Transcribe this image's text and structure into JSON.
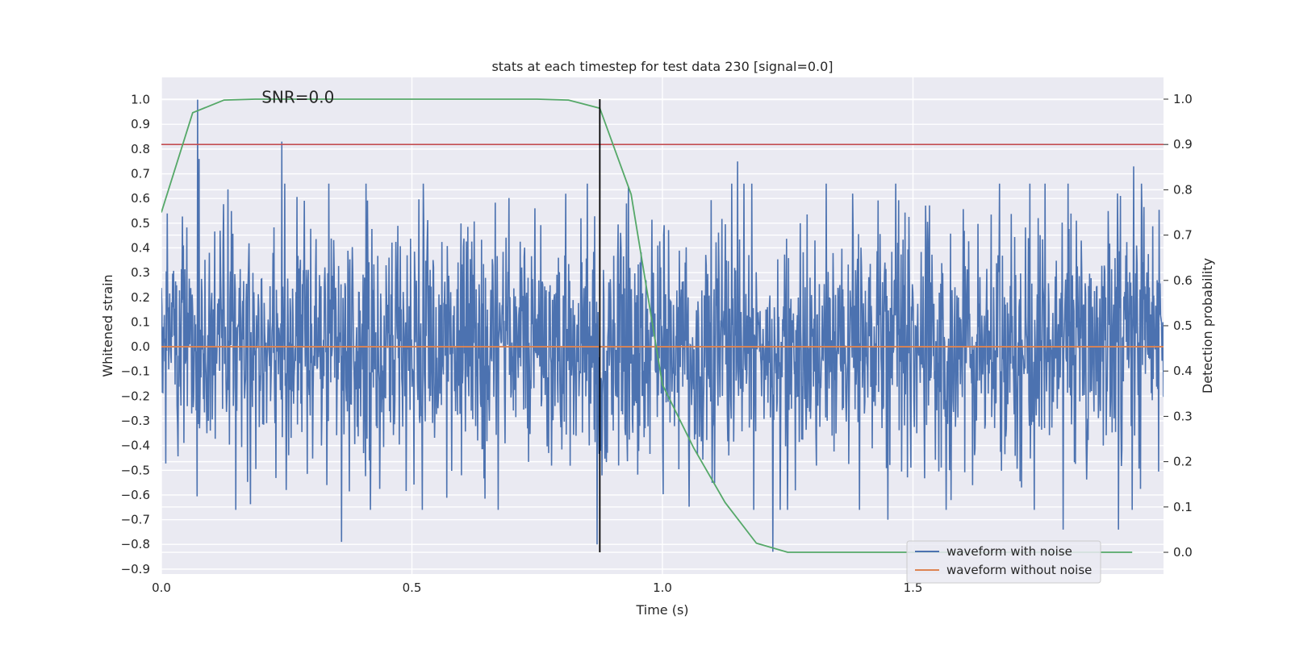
{
  "chart_data": {
    "type": "line",
    "title": "stats at each timestep for test data 230 [signal=0.0]",
    "xlabel": "Time (s)",
    "ylabel_left": "Whitened strain",
    "ylabel_right": "Detection probability",
    "xlim": [
      0.0,
      2.0
    ],
    "ylim_left": [
      -0.92,
      1.09
    ],
    "ylim_right": [
      -0.048,
      1.048
    ],
    "xticks": [
      "0.0",
      "0.5",
      "1.0",
      "1.5"
    ],
    "xtick_values": [
      0.0,
      0.5,
      1.0,
      1.5
    ],
    "yticks_left": [
      "1.0",
      "0.9",
      "0.8",
      "0.7",
      "0.6",
      "0.5",
      "0.4",
      "0.3",
      "0.2",
      "0.1",
      "0.0",
      "−0.1",
      "−0.2",
      "−0.3",
      "−0.4",
      "−0.5",
      "−0.6",
      "−0.7",
      "−0.8",
      "−0.9"
    ],
    "ytick_values_left": [
      1.0,
      0.9,
      0.8,
      0.7,
      0.6,
      0.5,
      0.4,
      0.3,
      0.2,
      0.1,
      0.0,
      -0.1,
      -0.2,
      -0.3,
      -0.4,
      -0.5,
      -0.6,
      -0.7,
      -0.8,
      -0.9
    ],
    "yticks_right": [
      "1.0",
      "0.9",
      "0.8",
      "0.7",
      "0.6",
      "0.5",
      "0.4",
      "0.3",
      "0.2",
      "0.1",
      "0.0"
    ],
    "ytick_values_right": [
      1.0,
      0.9,
      0.8,
      0.7,
      0.6,
      0.5,
      0.4,
      0.3,
      0.2,
      0.1,
      0.0
    ],
    "grid": true,
    "annotation": "SNR=0.0",
    "annotation_pos": {
      "x": 0.2,
      "y": 1.01
    },
    "legend": {
      "placement": "lower-right",
      "entries": [
        {
          "label": "waveform with noise",
          "color": "#4c72b0"
        },
        {
          "label": "waveform without noise",
          "color": "#dd8452"
        }
      ]
    },
    "noise_series": {
      "name": "waveform with noise",
      "color": "#4c72b0",
      "axis": "left",
      "x_range": [
        0.0,
        2.0
      ],
      "n_samples": 2048,
      "std": 0.25,
      "peaks": [
        {
          "x": 0.072,
          "y": 1.0
        },
        {
          "x": 0.075,
          "y": 0.76
        },
        {
          "x": 0.24,
          "y": 0.83
        },
        {
          "x": 0.36,
          "y": -0.79
        },
        {
          "x": 0.87,
          "y": -0.8
        },
        {
          "x": 1.22,
          "y": -0.83
        },
        {
          "x": 1.94,
          "y": 0.73
        },
        {
          "x": 1.91,
          "y": -0.74
        },
        {
          "x": 1.15,
          "y": 0.75
        },
        {
          "x": 1.45,
          "y": -0.7
        },
        {
          "x": 1.8,
          "y": -0.74
        }
      ]
    },
    "clean_series": {
      "name": "waveform without noise",
      "color": "#dd8452",
      "axis": "left",
      "x": [
        0.0,
        2.0
      ],
      "y": [
        0.0,
        0.0
      ]
    },
    "probability_series": {
      "color": "#55a868",
      "axis": "right",
      "x": [
        0.0,
        0.0625,
        0.125,
        0.1875,
        0.25,
        0.3125,
        0.375,
        0.4375,
        0.5,
        0.5625,
        0.625,
        0.6875,
        0.75,
        0.8125,
        0.875,
        0.9375,
        1.0,
        1.0625,
        1.125,
        1.1875,
        1.25,
        1.3125,
        1.375,
        1.4375,
        1.5,
        1.5625,
        1.625,
        1.6875,
        1.75,
        1.8125,
        1.875,
        1.9375
      ],
      "y": [
        0.75,
        0.97,
        0.998,
        1.0,
        1.0,
        1.0,
        1.0,
        1.0,
        1.0,
        1.0,
        1.0,
        1.0,
        1.0,
        0.998,
        0.98,
        0.79,
        0.37,
        0.23,
        0.11,
        0.02,
        0.0,
        0.0,
        0.0,
        0.0,
        0.0,
        0.0,
        0.0,
        0.0,
        0.0,
        0.0,
        0.0,
        0.0
      ]
    },
    "threshold_line": {
      "axis": "right",
      "y": 0.9,
      "color": "#c44e52"
    },
    "vertical_line": {
      "x": 0.875,
      "ymin_right": 0.0,
      "ymax_right": 1.0,
      "color": "#000000"
    }
  }
}
